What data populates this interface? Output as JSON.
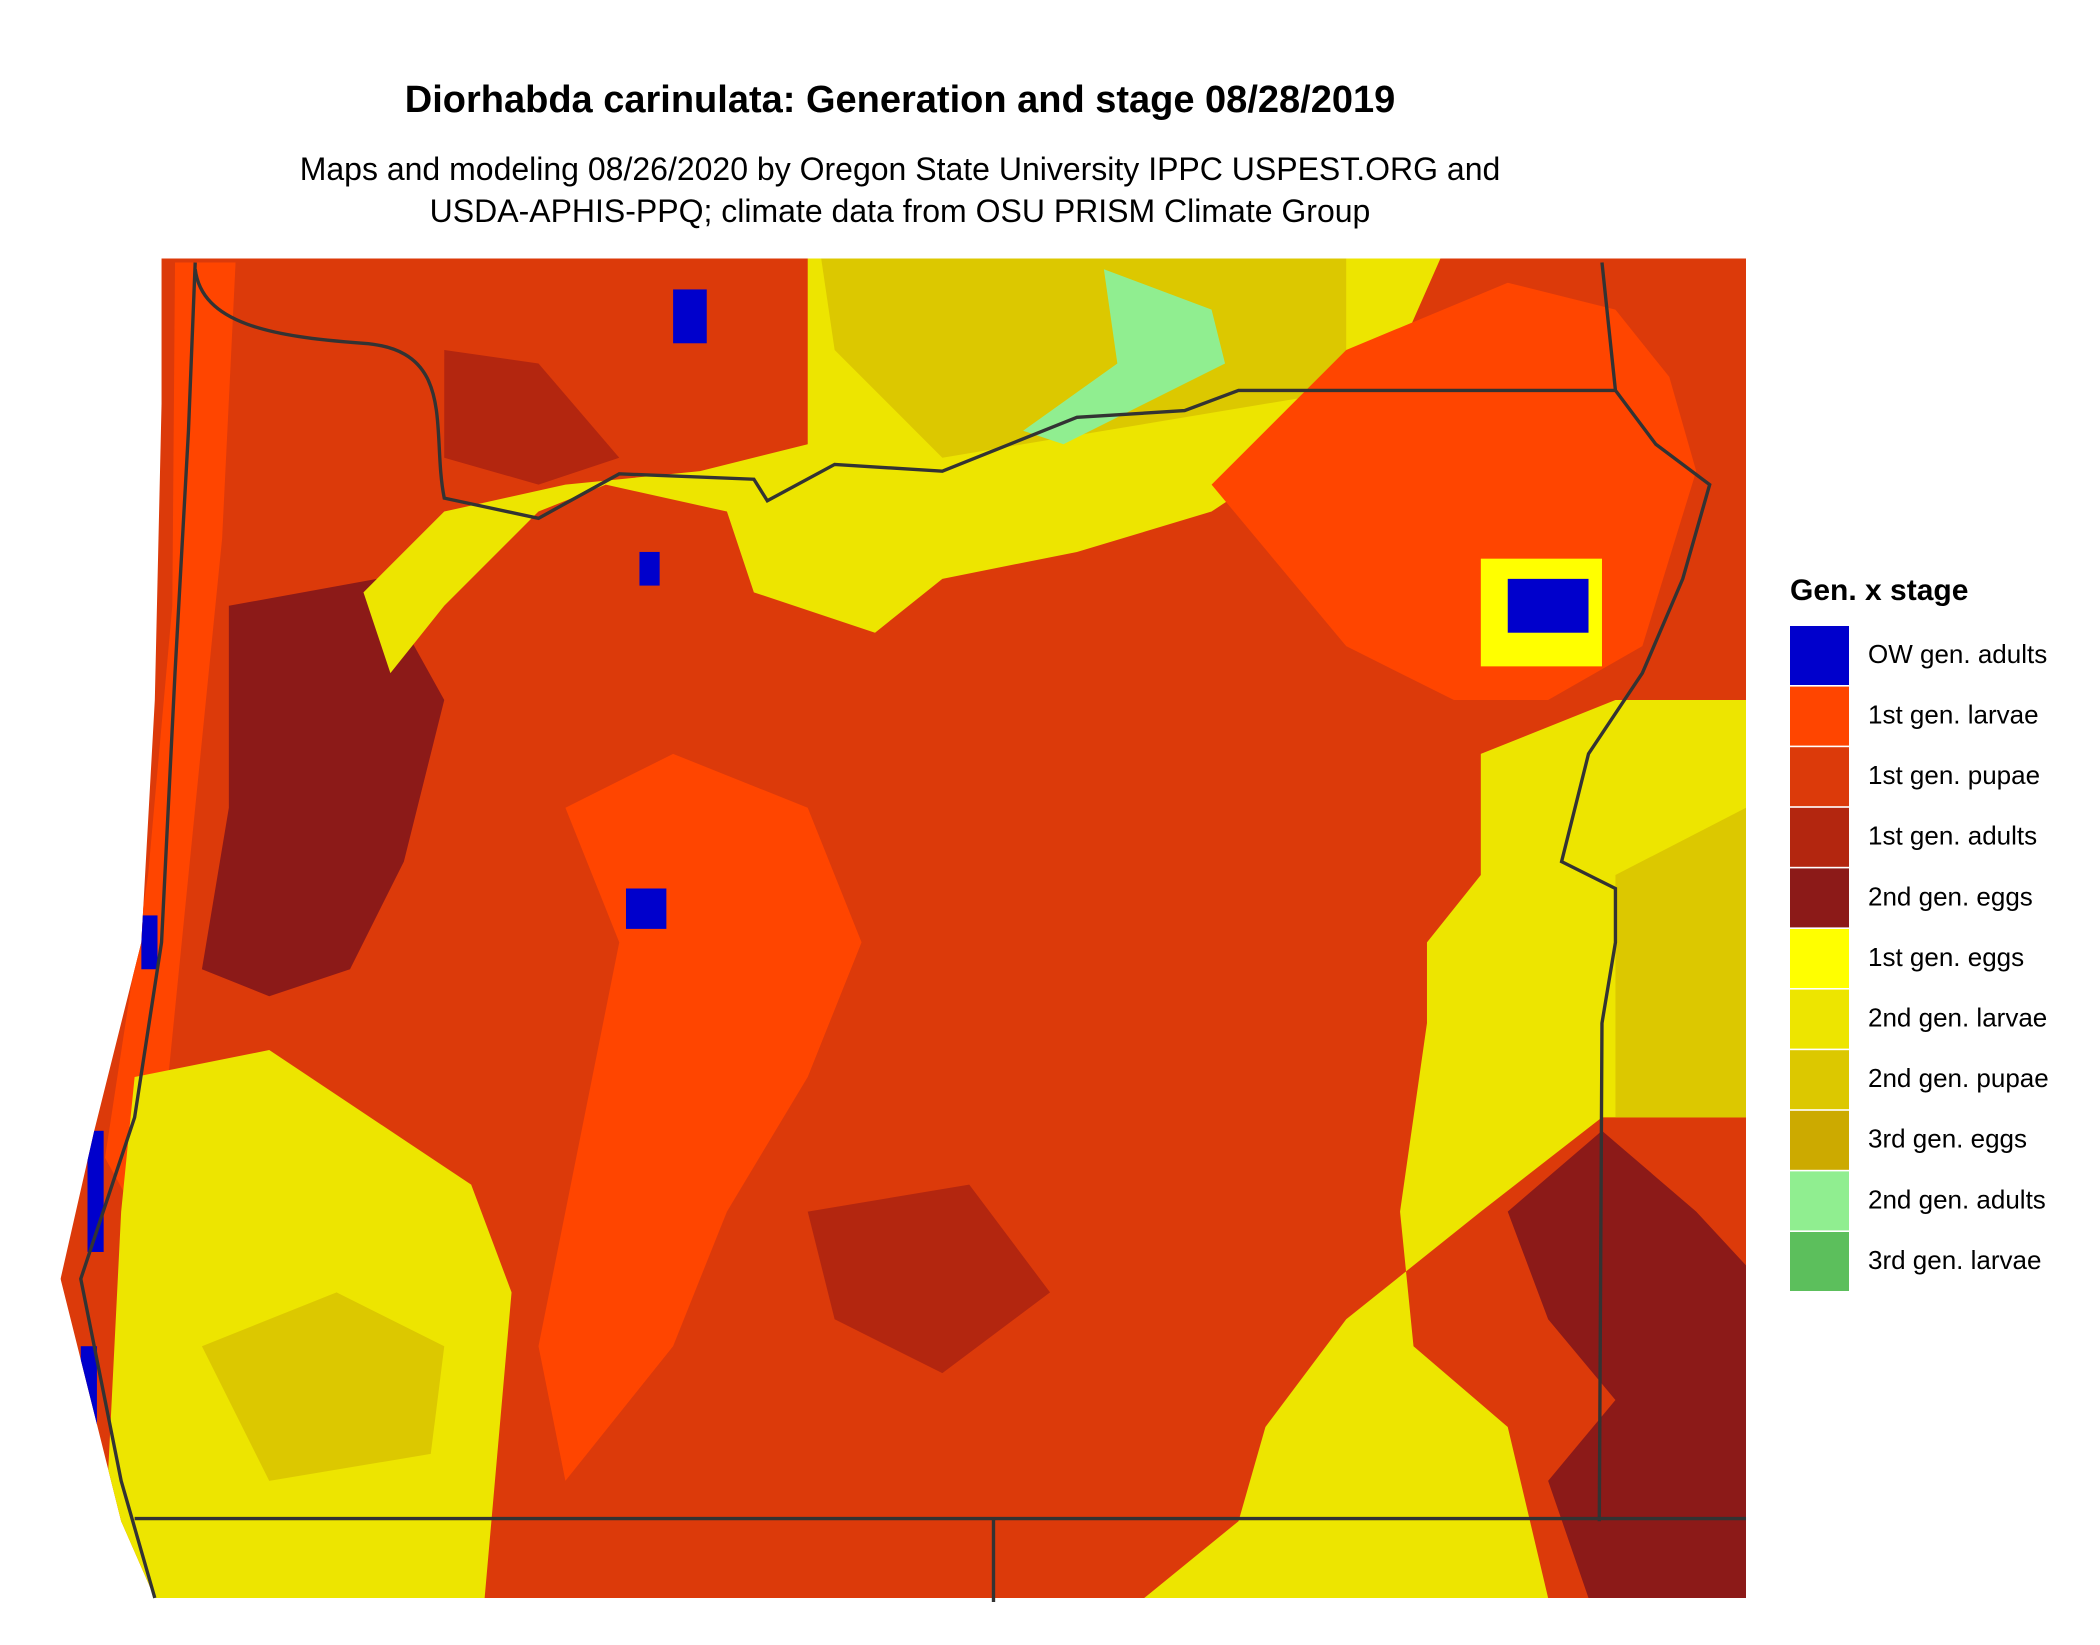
{
  "header": {
    "title": "Diorhabda carinulata: Generation and stage 08/28/2019",
    "subtitle": [
      "Maps and modeling 08/26/2020 by Oregon State University IPPC USPEST.ORG and",
      "USDA-APHIS-PPQ; climate data from OSU PRISM Climate Group"
    ]
  },
  "legend": {
    "title": "Gen. x stage",
    "items": [
      {
        "label": "OW gen. adults",
        "color": "#0000cc"
      },
      {
        "label": "1st gen. larvae",
        "color": "#ff4500"
      },
      {
        "label": "1st gen. pupae",
        "color": "#dc3a0a"
      },
      {
        "label": "1st gen. adults",
        "color": "#b3260f"
      },
      {
        "label": "2nd gen. eggs",
        "color": "#8c1a18"
      },
      {
        "label": "1st gen. eggs",
        "color": "#ffff00"
      },
      {
        "label": "2nd gen. larvae",
        "color": "#ede500"
      },
      {
        "label": "2nd gen. pupae",
        "color": "#dcc800"
      },
      {
        "label": "3rd gen. eggs",
        "color": "#ccaa00"
      },
      {
        "label": "2nd gen. adults",
        "color": "#90ee90"
      },
      {
        "label": "3rd gen. larvae",
        "color": "#5cbf5c"
      }
    ]
  }
}
